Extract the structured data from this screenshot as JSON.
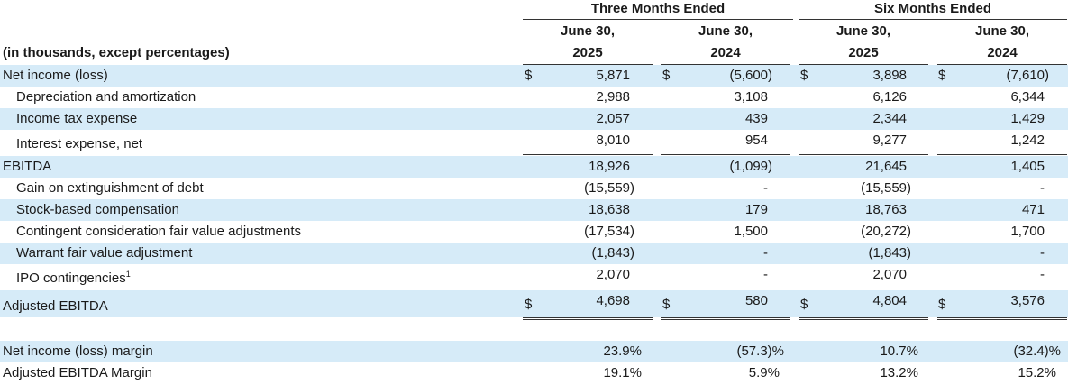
{
  "header": {
    "three_months": "Three Months Ended",
    "six_months": "Six Months Ended",
    "col1_l1": "June 30,",
    "col1_l2": "2025",
    "col2_l1": "June 30,",
    "col2_l2": "2024",
    "col3_l1": "June 30,",
    "col3_l2": "2025",
    "col4_l1": "June 30,",
    "col4_l2": "2024",
    "units": "(in thousands, except percentages)"
  },
  "currency_symbol": "$",
  "rows": {
    "net_income": {
      "label": "Net income (loss)",
      "c1": "5,871",
      "c2": "(5,600)",
      "c3": "3,898",
      "c4": "(7,610)"
    },
    "depreciation": {
      "label": "Depreciation and amortization",
      "c1": "2,988",
      "c2": "3,108",
      "c3": "6,126",
      "c4": "6,344"
    },
    "income_tax": {
      "label": "Income tax expense",
      "c1": "2,057",
      "c2": "439",
      "c3": "2,344",
      "c4": "1,429"
    },
    "interest": {
      "label": "Interest expense, net",
      "c1": "8,010",
      "c2": "954",
      "c3": "9,277",
      "c4": "1,242"
    },
    "ebitda": {
      "label": "EBITDA",
      "c1": "18,926",
      "c2": "(1,099)",
      "c3": "21,645",
      "c4": "1,405"
    },
    "gain_debt": {
      "label": "Gain on extinguishment of debt",
      "c1": "(15,559)",
      "c2": "-",
      "c3": "(15,559)",
      "c4": "-"
    },
    "stock_comp": {
      "label": "Stock-based compensation",
      "c1": "18,638",
      "c2": "179",
      "c3": "18,763",
      "c4": "471"
    },
    "contingent": {
      "label": "Contingent consideration fair value adjustments",
      "c1": "(17,534)",
      "c2": "1,500",
      "c3": "(20,272)",
      "c4": "1,700"
    },
    "warrant": {
      "label": "Warrant fair value adjustment",
      "c1": "(1,843)",
      "c2": "-",
      "c3": "(1,843)",
      "c4": "-"
    },
    "ipo": {
      "label": "IPO contingencies",
      "footnote": "1",
      "c1": "2,070",
      "c2": "-",
      "c3": "2,070",
      "c4": "-"
    },
    "adj_ebitda": {
      "label": "Adjusted EBITDA",
      "c1": "4,698",
      "c2": "580",
      "c3": "4,804",
      "c4": "3,576"
    },
    "ni_margin": {
      "label": "Net income (loss) margin",
      "c1": "23.9%",
      "c2": "(57.3)%",
      "c3": "10.7%",
      "c4": "(32.4)%"
    },
    "adj_margin": {
      "label": "Adjusted EBITDA Margin",
      "c1": "19.1%",
      "c2": "5.9%",
      "c3": "13.2%",
      "c4": "15.2%"
    }
  },
  "colors": {
    "row_shade": "#d6ebf8",
    "rule": "#333333"
  }
}
